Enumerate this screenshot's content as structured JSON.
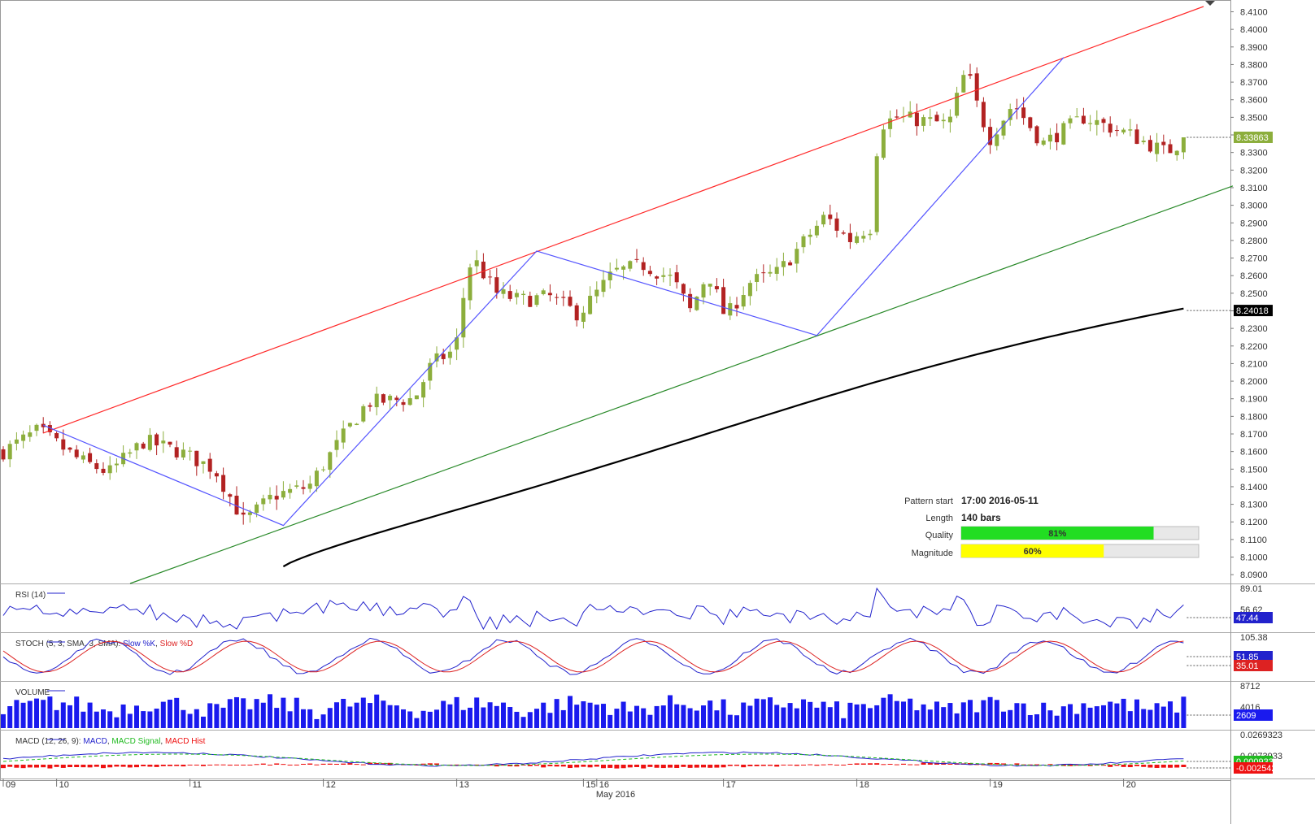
{
  "chart_data": {
    "type": "candlestick",
    "price_axis": {
      "range": [
        8.085,
        8.413
      ],
      "ticks": [
        "8.4100",
        "8.4000",
        "8.3900",
        "8.3800",
        "8.3700",
        "8.3600",
        "8.3500",
        "8.3400",
        "8.3300",
        "8.3200",
        "8.3100",
        "8.3000",
        "8.2900",
        "8.2800",
        "8.2700",
        "8.2600",
        "8.2500",
        "8.2400",
        "8.2300",
        "8.2200",
        "8.2100",
        "8.2000",
        "8.1900",
        "8.1800",
        "8.1700",
        "8.1600",
        "8.1500",
        "8.1400",
        "8.1300",
        "8.1200",
        "8.1100",
        "8.1000",
        "8.0900"
      ],
      "current_price_label": "8.33863",
      "current_price": 8.33863,
      "ma_price_label": "8.24018",
      "ma_price": 8.24018
    },
    "time_axis": {
      "labels": [
        "09",
        "10",
        "11",
        "12",
        "13",
        "15",
        "16",
        "17",
        "18",
        "19",
        "20"
      ],
      "bar_index": [
        0,
        8,
        28,
        48,
        68,
        87,
        89,
        108,
        128,
        148,
        168
      ],
      "month_label": "May 2016",
      "bars": 178
    },
    "anchors": [
      [
        0,
        8.16
      ],
      [
        6,
        8.172
      ],
      [
        14,
        8.155
      ],
      [
        20,
        8.148
      ],
      [
        24,
        8.165
      ],
      [
        31,
        8.15
      ],
      [
        38,
        8.145
      ],
      [
        42,
        8.122
      ],
      [
        46,
        8.14
      ],
      [
        54,
        8.145
      ],
      [
        60,
        8.185
      ],
      [
        70,
        8.19
      ],
      [
        74,
        8.215
      ],
      [
        78,
        8.225
      ],
      [
        80,
        8.268
      ],
      [
        84,
        8.255
      ],
      [
        88,
        8.25
      ],
      [
        94,
        8.248
      ],
      [
        98,
        8.235
      ],
      [
        104,
        8.245
      ],
      [
        110,
        8.265
      ],
      [
        118,
        8.258
      ],
      [
        122,
        8.235
      ],
      [
        126,
        8.262
      ],
      [
        130,
        8.25
      ],
      [
        134,
        8.258
      ],
      [
        138,
        8.26
      ],
      [
        142,
        8.282
      ],
      [
        146,
        8.29
      ],
      [
        150,
        8.288
      ],
      [
        152,
        8.28
      ],
      [
        144,
        8.294
      ],
      [
        143,
        8.289
      ],
      [
        147,
        8.3
      ],
      [
        150,
        8.282
      ],
      [
        143,
        8.353
      ],
      [
        156,
        8.347
      ],
      [
        152,
        8.35
      ],
      [
        156,
        8.347
      ]
    ],
    "series": [
      {
        "name": "MA",
        "color": "#000000"
      }
    ],
    "channel": {
      "upper_color": "#ff2a2a",
      "lower_color": "#2a8a2a",
      "pattern_color": "#5555ff"
    },
    "indicators": [
      {
        "label": "RSI (14)",
        "ticks": [
          "89.01",
          "56.62"
        ],
        "value": "47.44"
      },
      {
        "label": "STOCH (5, 3, SMA, 3, SMA):",
        "k_label": "Slow %K",
        "d_label": "Slow %D",
        "ticks": [
          "105.38"
        ],
        "k_value": "51.85",
        "d_value": "35.01"
      },
      {
        "label": "VOLUME",
        "ticks": [
          "8712",
          "4016"
        ],
        "value": "2609"
      },
      {
        "label": "MACD (12, 26, 9):",
        "macd_label": "MACD",
        "signal_label": "MACD Signal",
        "hist_label": "MACD Hist",
        "ticks": [
          "0.0269323",
          "0.0073933"
        ],
        "signal_value": "0.0009337",
        "macd_value": "-0.0025427"
      }
    ]
  },
  "pattern_info": {
    "start_label": "Pattern start",
    "start_value": "17:00 2016-05-11",
    "length_label": "Length",
    "length_value": "140 bars",
    "quality_label": "Quality",
    "quality_value": "81%",
    "quality_fraction": 0.81,
    "magnitude_label": "Magnitude",
    "magnitude_value": "60%",
    "magnitude_fraction": 0.6
  },
  "colors": {
    "bull": "#8cae3c",
    "bear": "#b22222",
    "quality_fill": "#22dd22",
    "magnitude_fill": "#ffff00",
    "rsi": "#2222cc",
    "stoch_k": "#2222cc",
    "stoch_d": "#dd2222",
    "volume": "#1a1aee",
    "macd": "#2222cc",
    "macd_signal": "#22bb22",
    "macd_hist": "#ee1111"
  }
}
